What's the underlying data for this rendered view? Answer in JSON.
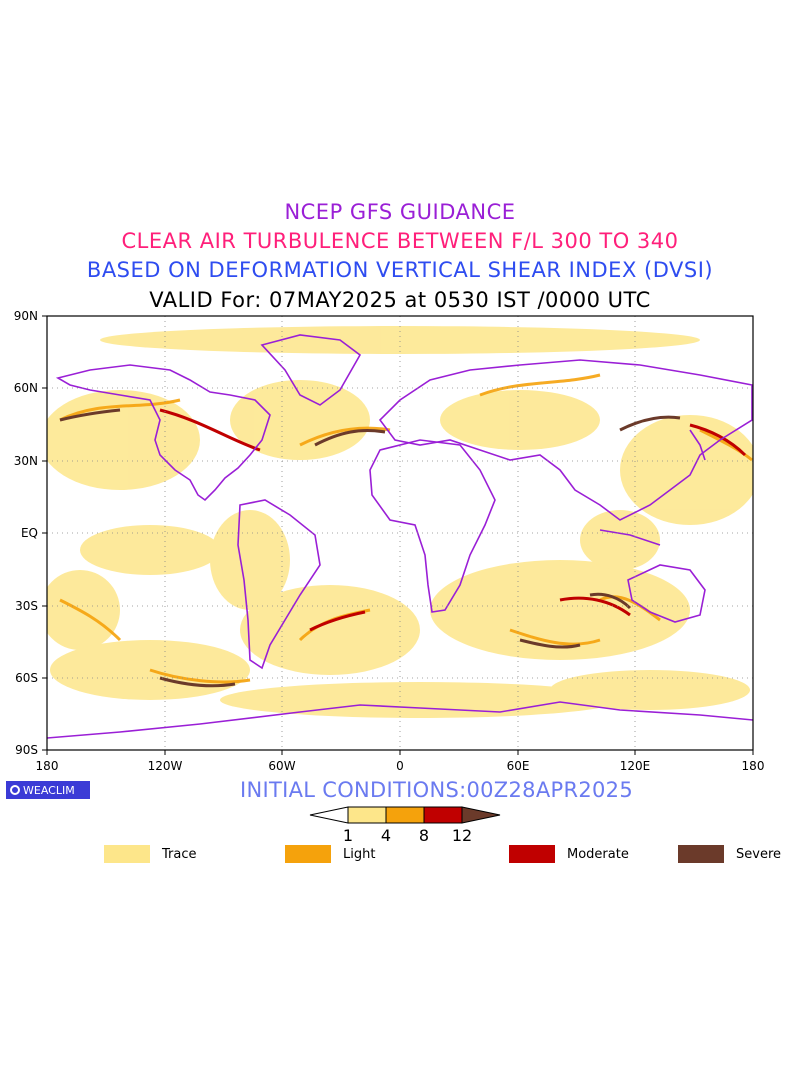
{
  "titles": {
    "line1": "NCEP GFS GUIDANCE",
    "line2": "CLEAR AIR TURBULENCE BETWEEN F/L 300 TO 340",
    "line3": "BASED ON DEFORMATION VERTICAL SHEAR INDEX (DVSI)",
    "line4": "VALID For: 07MAY2025 at 0530 IST /0000 UTC"
  },
  "map": {
    "lat_labels": [
      "90N",
      "60N",
      "30N",
      "EQ",
      "30S",
      "60S",
      "90S"
    ],
    "lon_labels": [
      "180",
      "120W",
      "60W",
      "0",
      "60E",
      "120E",
      "180"
    ],
    "colors": {
      "trace": "#fde68a",
      "light": "#f5a20c",
      "moderate": "#c00000",
      "severe": "#6b3a2a",
      "coast": "#9a1fd6"
    }
  },
  "logo": {
    "text": "WEACLIM"
  },
  "initial_conditions": "INITIAL CONDITIONS:00Z28APR2025",
  "colorbar": {
    "ticks": [
      "1",
      "4",
      "8",
      "12"
    ],
    "colors": [
      "#ffffff",
      "#fde68a",
      "#f5a20c",
      "#c00000",
      "#6b3a2a"
    ]
  },
  "legend": [
    {
      "label": "Trace",
      "color": "#fde68a"
    },
    {
      "label": "Light",
      "color": "#f5a20c"
    },
    {
      "label": "Moderate",
      "color": "#c00000"
    },
    {
      "label": "Severe",
      "color": "#6b3a2a"
    }
  ]
}
